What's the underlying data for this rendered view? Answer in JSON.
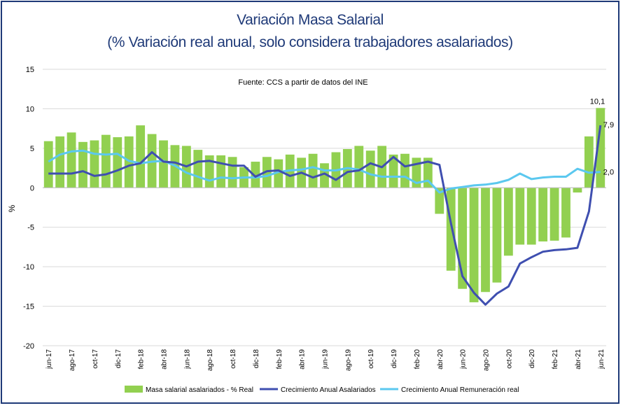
{
  "chart_data": {
    "type": "bar+line",
    "title": "Variación Masa Salarial",
    "subtitle": "(% Variación real anual, solo considera trabajadores asalariados)",
    "source": "Fuente: CCS a partir de datos del INE",
    "ylabel": "%",
    "xlabel": "",
    "ylim": [
      -20,
      15
    ],
    "yticks": [
      15,
      10,
      5,
      0,
      -5,
      -10,
      -15,
      -20
    ],
    "grid": true,
    "legend_position": "bottom",
    "x": [
      "jun-17",
      "jul-17",
      "ago-17",
      "sep-17",
      "oct-17",
      "nov-17",
      "dic-17",
      "ene-18",
      "feb-18",
      "mar-18",
      "abr-18",
      "may-18",
      "jun-18",
      "jul-18",
      "ago-18",
      "sep-18",
      "oct-18",
      "nov-18",
      "dic-18",
      "ene-19",
      "feb-19",
      "mar-19",
      "abr-19",
      "may-19",
      "jun-19",
      "jul-19",
      "ago-19",
      "sep-19",
      "oct-19",
      "nov-19",
      "dic-19",
      "ene-20",
      "feb-20",
      "mar-20",
      "abr-20",
      "may-20",
      "jun-20",
      "jul-20",
      "ago-20",
      "sep-20",
      "oct-20",
      "nov-20",
      "dic-20",
      "ene-21",
      "feb-21",
      "mar-21",
      "abr-21",
      "may-21",
      "jun-21"
    ],
    "tick_labels": [
      "jun-17",
      "ago-17",
      "oct-17",
      "dic-17",
      "feb-18",
      "abr-18",
      "jun-18",
      "ago-18",
      "oct-18",
      "dic-18",
      "feb-19",
      "abr-19",
      "jun-19",
      "ago-19",
      "oct-19",
      "dic-19",
      "feb-20",
      "abr-20",
      "jun-20",
      "ago-20",
      "oct-20",
      "dic-20",
      "feb-21",
      "abr-21",
      "jun-21"
    ],
    "series": [
      {
        "name": "Masa salarial asalariados - % Real",
        "kind": "bar",
        "color": "#92d050",
        "values": [
          5.9,
          6.5,
          7.0,
          5.8,
          6.0,
          6.7,
          6.4,
          6.5,
          7.9,
          6.8,
          6.0,
          5.4,
          5.3,
          4.8,
          4.1,
          4.1,
          3.9,
          2.6,
          3.3,
          3.9,
          3.6,
          4.2,
          3.8,
          4.3,
          3.1,
          4.5,
          4.9,
          5.3,
          4.7,
          5.3,
          4.2,
          4.3,
          3.8,
          3.8,
          -3.3,
          -10.5,
          -12.8,
          -14.5,
          -13.2,
          -12.0,
          -8.6,
          -7.2,
          -7.2,
          -6.8,
          -6.7,
          -6.3,
          -0.6,
          6.5,
          10.1
        ]
      },
      {
        "name": "Crecimiento Anual Asalariados",
        "kind": "line",
        "color": "#3f4fb0",
        "values": [
          1.8,
          1.8,
          1.8,
          2.1,
          1.5,
          1.7,
          2.2,
          2.8,
          3.1,
          4.5,
          3.3,
          3.2,
          2.7,
          3.3,
          3.4,
          3.1,
          2.8,
          2.8,
          1.4,
          2.1,
          2.2,
          1.5,
          1.9,
          1.3,
          1.8,
          1.0,
          2.0,
          2.2,
          3.1,
          2.6,
          3.9,
          2.7,
          3.0,
          3.3,
          2.9,
          -4.5,
          -11.2,
          -13.3,
          -14.8,
          -13.4,
          -12.5,
          -9.6,
          -8.8,
          -8.1,
          -7.9,
          -7.8,
          -7.6,
          -3.0,
          7.9
        ]
      },
      {
        "name": "Crecimiento Anual Remuneración real",
        "kind": "line",
        "color": "#5bc8ef",
        "values": [
          3.3,
          4.2,
          4.6,
          4.7,
          4.3,
          4.2,
          4.3,
          3.4,
          3.1,
          3.3,
          3.4,
          2.8,
          1.9,
          1.4,
          0.9,
          1.3,
          1.2,
          1.3,
          1.3,
          1.5,
          2.0,
          2.2,
          2.3,
          2.6,
          2.2,
          2.2,
          2.5,
          2.3,
          1.7,
          1.4,
          1.4,
          1.4,
          0.6,
          0.9,
          -0.6,
          -0.1,
          0.1,
          0.3,
          0.4,
          0.6,
          1.0,
          1.8,
          1.1,
          1.3,
          1.4,
          1.4,
          2.4,
          1.9,
          2.0
        ]
      }
    ],
    "annotations": [
      {
        "series": 0,
        "index": 48,
        "text": "10,1"
      },
      {
        "series": 1,
        "index": 48,
        "text": "7,9"
      },
      {
        "series": 2,
        "index": 48,
        "text": "2,0"
      }
    ]
  }
}
